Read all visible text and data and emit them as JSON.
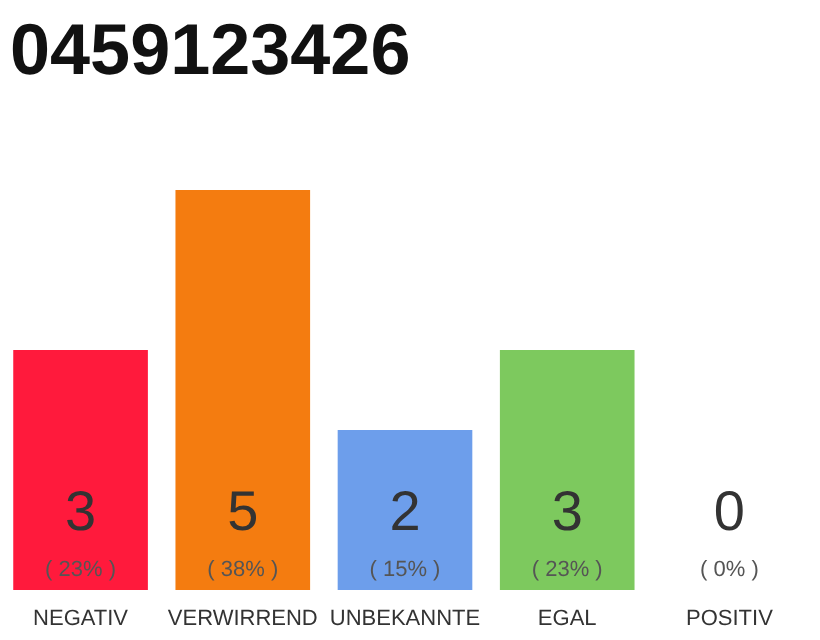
{
  "chart_data": {
    "type": "bar",
    "title": "0459123426",
    "categories": [
      "NEGATIV",
      "VERWIRREND",
      "UNBEKANNTE",
      "EGAL",
      "POSITIV"
    ],
    "values": [
      3,
      5,
      2,
      3,
      0
    ],
    "colors": [
      "#ff1a3c",
      "#f47c10",
      "#6d9eeb",
      "#7dc95e",
      "#cccccc"
    ],
    "value_labels": [
      "3",
      "5",
      "2",
      "3",
      "0"
    ],
    "annotations": [
      "( 23% )",
      "( 38% )",
      "( 15% )",
      "( 23% )",
      "( 0% )"
    ],
    "grid": false
  }
}
